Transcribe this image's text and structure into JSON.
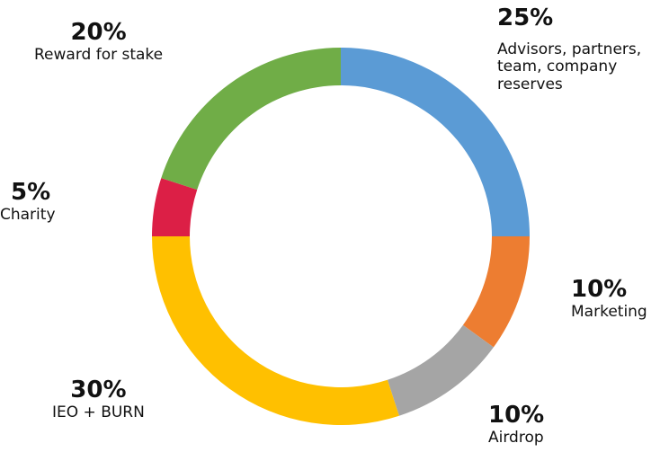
{
  "chart_data": {
    "type": "pie",
    "variant": "donut",
    "start_angle_deg": 0,
    "direction": "clockwise",
    "slices": [
      {
        "label": "Advisors, partners, team, company reserves",
        "percent_label": "25%",
        "value": 25,
        "color": "#5b9bd5"
      },
      {
        "label": "Marketing",
        "percent_label": "10%",
        "value": 10,
        "color": "#ed7d31"
      },
      {
        "label": "Airdrop",
        "percent_label": "10%",
        "value": 10,
        "color": "#a5a5a5"
      },
      {
        "label": "IEO + BURN",
        "percent_label": "30%",
        "value": 30,
        "color": "#ffc000"
      },
      {
        "label": "Charity",
        "percent_label": "5%",
        "value": 5,
        "color": "#dc1f46"
      },
      {
        "label": "Reward for stake",
        "percent_label": "20%",
        "value": 20,
        "color": "#70ad47"
      }
    ]
  }
}
